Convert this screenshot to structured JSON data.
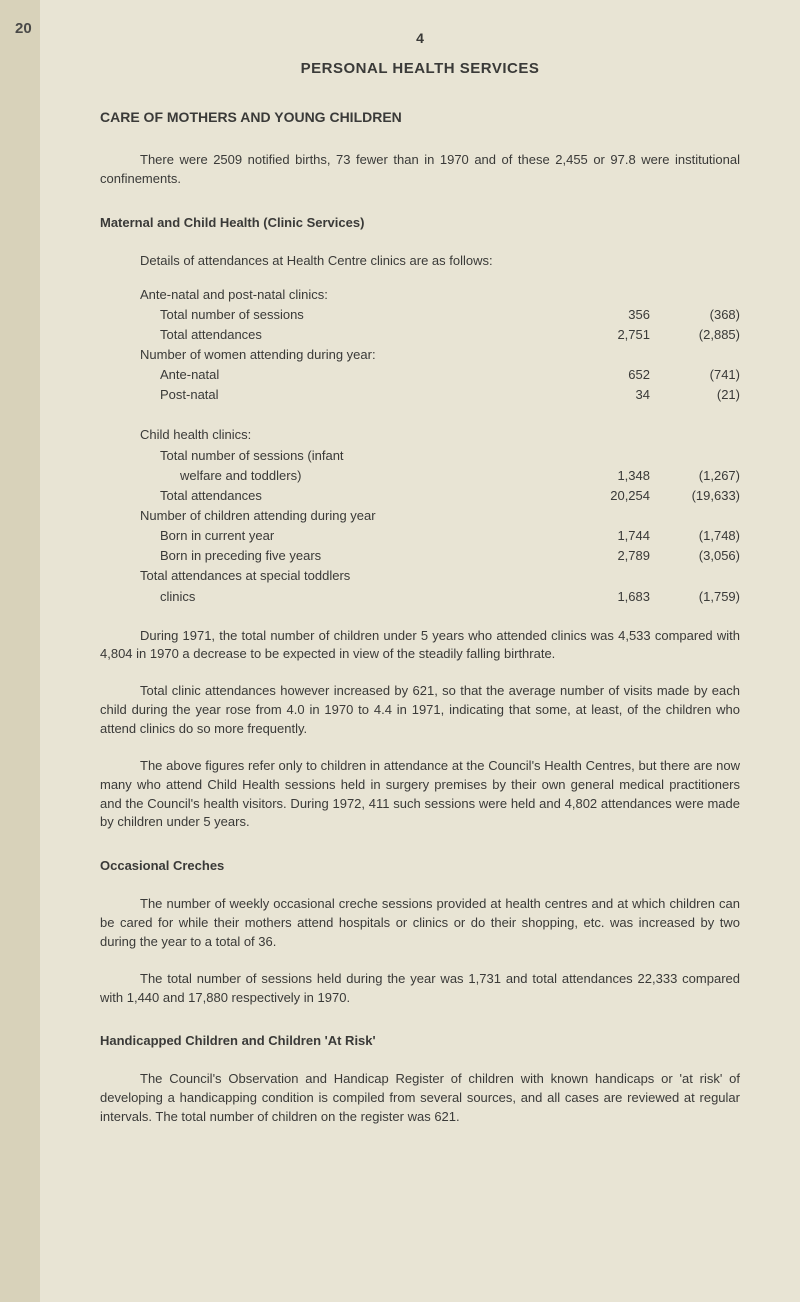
{
  "page_number_top": "20",
  "chapter_number": "4",
  "main_title": "PERSONAL HEALTH SERVICES",
  "section_title": "CARE OF MOTHERS AND YOUNG CHILDREN",
  "para_intro": "There were 2509 notified births, 73 fewer than in 1970 and of these 2,455 or 97.8 were institutional confinements.",
  "maternal_heading": "Maternal and Child Health (Clinic Services)",
  "attendances_intro": "Details of attendances at Health Centre clinics are as follows:",
  "ante_post_heading": "Ante-natal and post-natal clinics:",
  "rows_ante": [
    {
      "label": "Total number of sessions",
      "v1": "356",
      "v2": "(368)",
      "indent": "indent1"
    },
    {
      "label": "Total attendances",
      "v1": "2,751",
      "v2": "(2,885)",
      "indent": "indent1"
    }
  ],
  "women_heading": "Number of women attending during year:",
  "rows_women": [
    {
      "label": "Ante-natal",
      "v1": "652",
      "v2": "(741)",
      "indent": "indent1"
    },
    {
      "label": "Post-natal",
      "v1": "34",
      "v2": "(21)",
      "indent": "indent1"
    }
  ],
  "child_heading": "Child health clinics:",
  "rows_child1": [
    {
      "label": "Total number of sessions (infant",
      "v1": "",
      "v2": "",
      "indent": "indent1"
    },
    {
      "label": "welfare and toddlers)",
      "v1": "1,348",
      "v2": "(1,267)",
      "indent": "indent2"
    },
    {
      "label": "Total attendances",
      "v1": "20,254",
      "v2": "(19,633)",
      "indent": "indent1"
    }
  ],
  "children_attending_heading": "Number of children attending during year",
  "rows_child2": [
    {
      "label": "Born in current year",
      "v1": "1,744",
      "v2": "(1,748)",
      "indent": "indent1"
    },
    {
      "label": "Born in preceding five years",
      "v1": "2,789",
      "v2": "(3,056)",
      "indent": "indent1"
    }
  ],
  "special_heading": "Total attendances at special toddlers",
  "rows_special": [
    {
      "label": "clinics",
      "v1": "1,683",
      "v2": "(1,759)",
      "indent": "indent1"
    }
  ],
  "para_during": "During 1971, the total number of children under 5 years who attended clinics was 4,533 compared with 4,804 in 1970 a decrease to be expected in view of the steadily falling birthrate.",
  "para_total_clinic": "Total clinic attendances however increased by 621, so that the average number of visits made by each child during the year rose from 4.0 in 1970 to 4.4 in 1971, indicating that some, at least, of the children who attend clinics do so more frequently.",
  "para_above_figures": "The above figures refer only to children in attendance at the Council's Health Centres, but there are now many who attend Child Health sessions held in surgery premises by their own general medical practitioners and the Council's health visitors. During 1972, 411 such sessions were held and 4,802 attendances were made by children under 5 years.",
  "creches_heading": "Occasional Creches",
  "para_creches1": "The number of weekly occasional creche sessions provided at health centres and at which children can be cared for while their mothers attend hospitals or clinics or do their shopping, etc. was increased by two during the year to a total of 36.",
  "para_creches2": "The total number of sessions held during the year was 1,731 and total attendances 22,333 compared with 1,440 and 17,880 respectively in 1970.",
  "handicapped_heading": "Handicapped Children and Children 'At Risk'",
  "para_handicapped": "The Council's Observation and Handicap Register of children with known handicaps or 'at risk' of developing a handicapping condition is compiled from several sources, and all cases are reviewed at regular intervals. The total number of children on the register was 621."
}
